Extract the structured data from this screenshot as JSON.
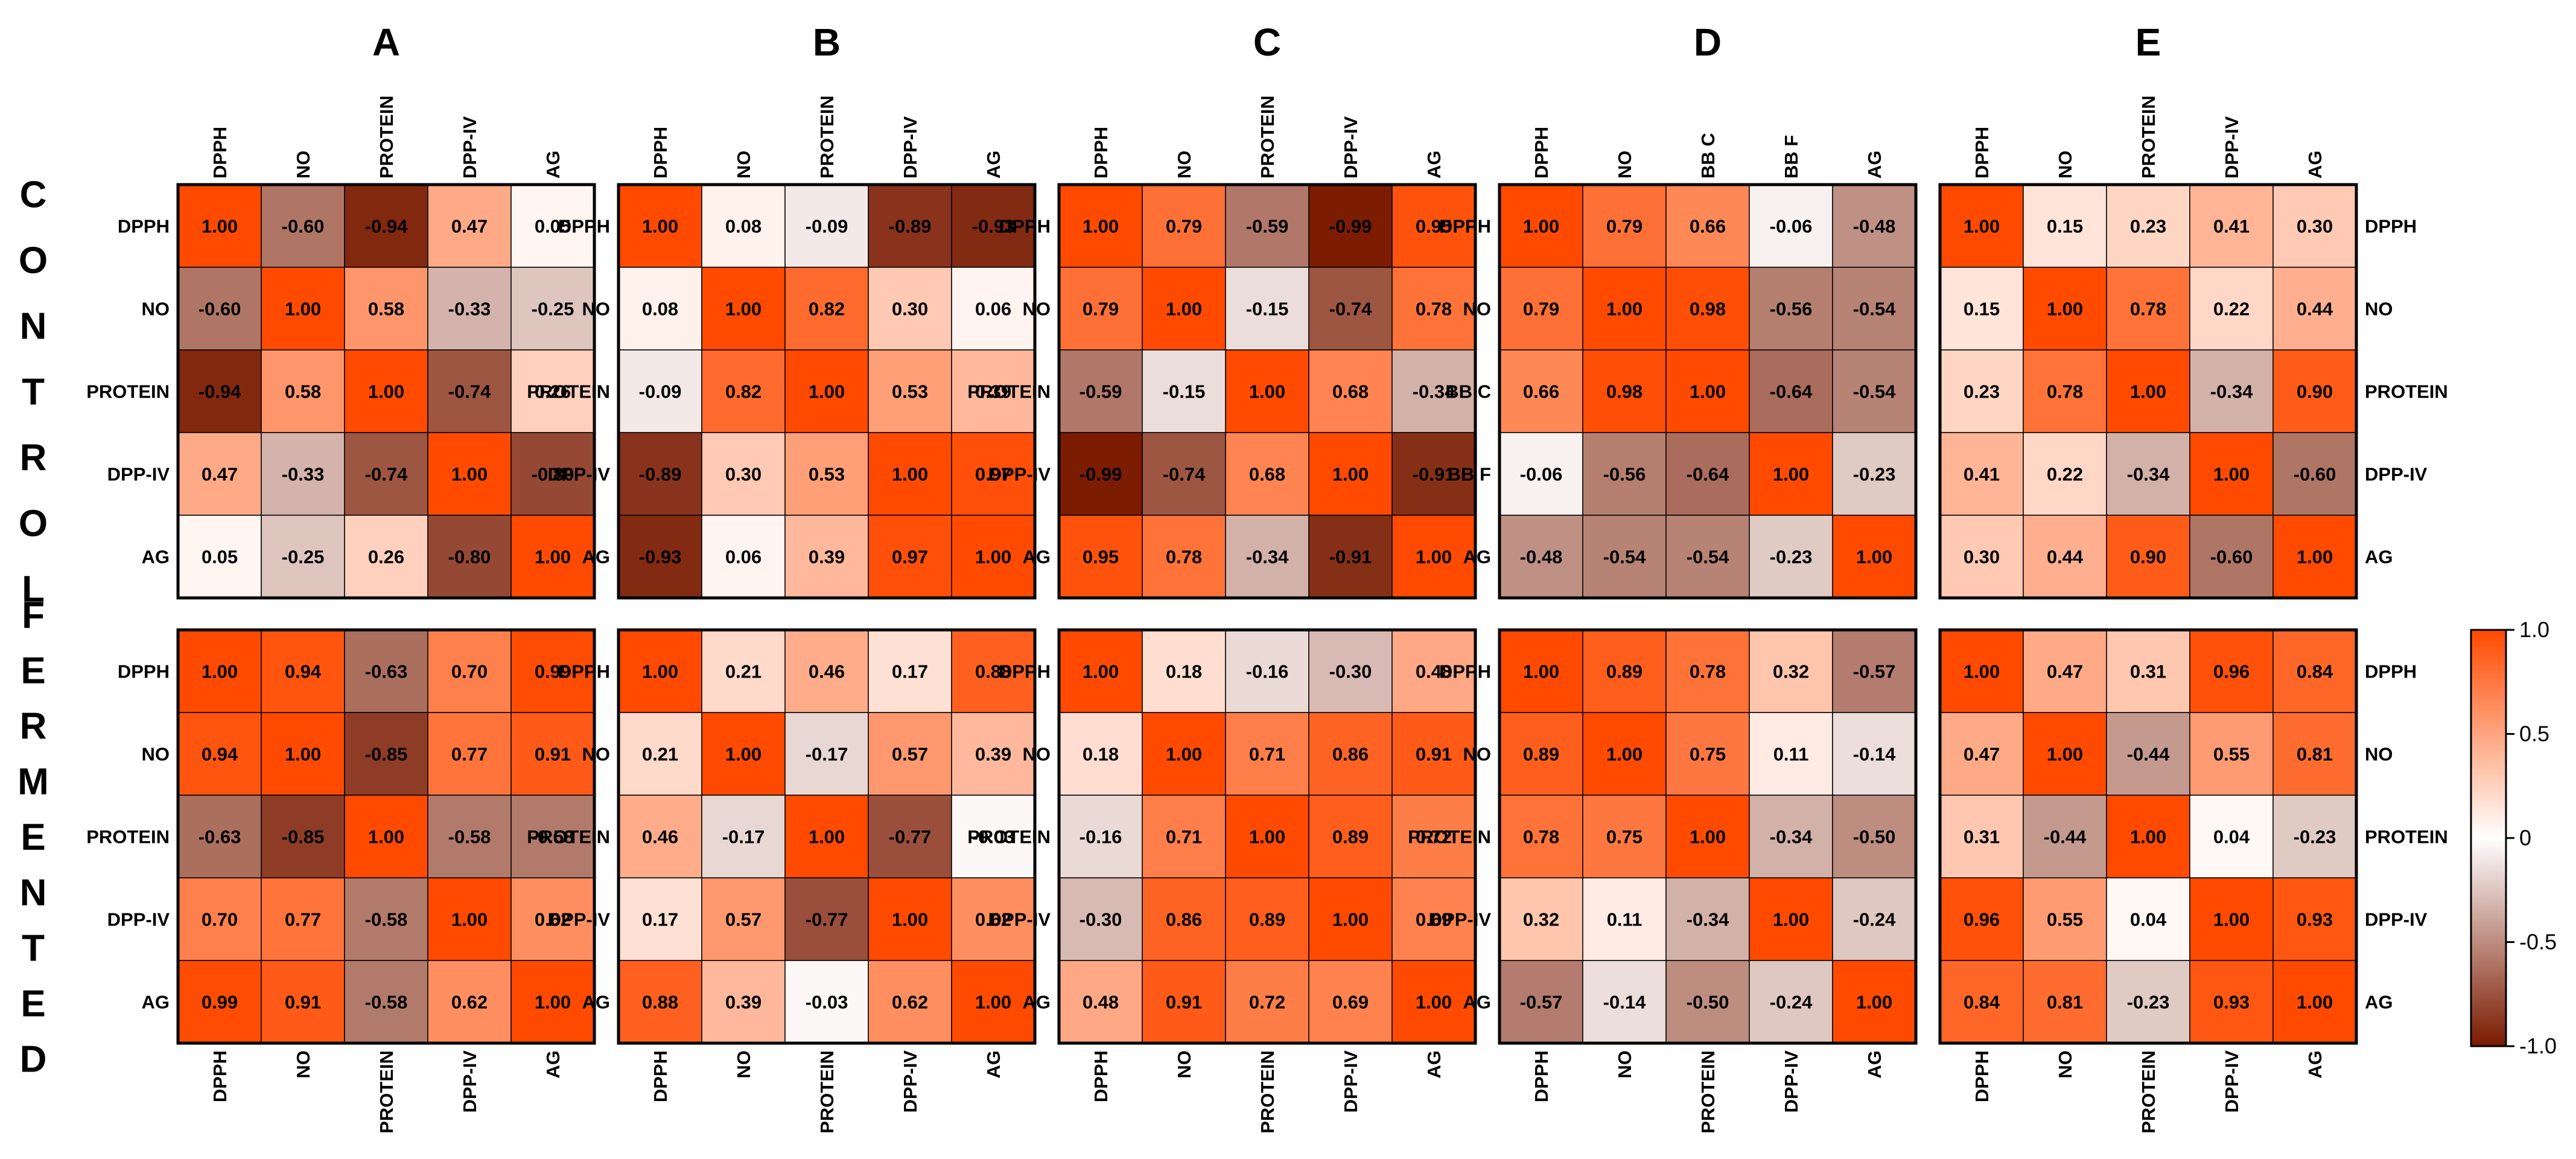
{
  "colors": {
    "positive": "#ff4a00",
    "neutral": "#ffffff",
    "negative": "#7a1a00",
    "cell_border": "#000000",
    "frame": "#000000"
  },
  "groups": [
    "CONTROL",
    "FERMENTED"
  ],
  "chart_data": {
    "type": "heatmap",
    "title": "",
    "value_range": [
      -1.0,
      1.0
    ],
    "colorbar": {
      "ticks": [
        1.0,
        0.5,
        0,
        -0.5,
        -1.0
      ],
      "tick_labels": [
        "1.0",
        "0.5",
        "0",
        "-0.5",
        "-1.0"
      ]
    },
    "panels": [
      {
        "title": "A",
        "control": {
          "labels": [
            "DPPH",
            "NO",
            "PROTEIN",
            "DPP-IV",
            "AG"
          ],
          "values": [
            [
              1.0,
              -0.6,
              -0.94,
              0.47,
              0.05
            ],
            [
              -0.6,
              1.0,
              0.58,
              -0.33,
              -0.25
            ],
            [
              -0.94,
              0.58,
              1.0,
              -0.74,
              0.26
            ],
            [
              0.47,
              -0.33,
              -0.74,
              1.0,
              -0.8
            ],
            [
              0.05,
              -0.25,
              0.26,
              -0.8,
              1.0
            ]
          ]
        },
        "fermented": {
          "labels": [
            "DPPH",
            "NO",
            "PROTEIN",
            "DPP-IV",
            "AG"
          ],
          "values": [
            [
              1.0,
              0.94,
              -0.63,
              0.7,
              0.99
            ],
            [
              0.94,
              1.0,
              -0.85,
              0.77,
              0.91
            ],
            [
              -0.63,
              -0.85,
              1.0,
              -0.58,
              -0.58
            ],
            [
              0.7,
              0.77,
              -0.58,
              1.0,
              0.62
            ],
            [
              0.99,
              0.91,
              -0.58,
              0.62,
              1.0
            ]
          ]
        }
      },
      {
        "title": "B",
        "control": {
          "labels": [
            "DPPH",
            "NO",
            "PROTEIN",
            "DPP-IV",
            "AG"
          ],
          "values": [
            [
              1.0,
              0.08,
              -0.09,
              -0.89,
              -0.93
            ],
            [
              0.08,
              1.0,
              0.82,
              0.3,
              0.06
            ],
            [
              -0.09,
              0.82,
              1.0,
              0.53,
              0.39
            ],
            [
              -0.89,
              0.3,
              0.53,
              1.0,
              0.97
            ],
            [
              -0.93,
              0.06,
              0.39,
              0.97,
              1.0
            ]
          ]
        },
        "fermented": {
          "labels": [
            "DPPH",
            "NO",
            "PROTEIN",
            "DPP-IV",
            "AG"
          ],
          "values": [
            [
              1.0,
              0.21,
              0.46,
              0.17,
              0.88
            ],
            [
              0.21,
              1.0,
              -0.17,
              0.57,
              0.39
            ],
            [
              0.46,
              -0.17,
              1.0,
              -0.77,
              -0.03
            ],
            [
              0.17,
              0.57,
              -0.77,
              1.0,
              0.62
            ],
            [
              0.88,
              0.39,
              -0.03,
              0.62,
              1.0
            ]
          ]
        }
      },
      {
        "title": "C",
        "control": {
          "labels": [
            "DPPH",
            "NO",
            "PROTEIN",
            "DPP-IV",
            "AG"
          ],
          "values": [
            [
              1.0,
              0.79,
              -0.59,
              -0.99,
              0.95
            ],
            [
              0.79,
              1.0,
              -0.15,
              -0.74,
              0.78
            ],
            [
              -0.59,
              -0.15,
              1.0,
              0.68,
              -0.34
            ],
            [
              -0.99,
              -0.74,
              0.68,
              1.0,
              -0.91
            ],
            [
              0.95,
              0.78,
              -0.34,
              -0.91,
              1.0
            ]
          ]
        },
        "fermented": {
          "labels": [
            "DPPH",
            "NO",
            "PROTEIN",
            "DPP-IV",
            "AG"
          ],
          "values": [
            [
              1.0,
              0.18,
              -0.16,
              -0.3,
              0.48
            ],
            [
              0.18,
              1.0,
              0.71,
              0.86,
              0.91
            ],
            [
              -0.16,
              0.71,
              1.0,
              0.89,
              0.72
            ],
            [
              -0.3,
              0.86,
              0.89,
              1.0,
              0.69
            ],
            [
              0.48,
              0.91,
              0.72,
              0.69,
              1.0
            ]
          ]
        }
      },
      {
        "title": "D",
        "control": {
          "labels": [
            "DPPH",
            "NO",
            "BB C",
            "BB F",
            "AG"
          ],
          "values": [
            [
              1.0,
              0.79,
              0.66,
              -0.06,
              -0.48
            ],
            [
              0.79,
              1.0,
              0.98,
              -0.56,
              -0.54
            ],
            [
              0.66,
              0.98,
              1.0,
              -0.64,
              -0.54
            ],
            [
              -0.06,
              -0.56,
              -0.64,
              1.0,
              -0.23
            ],
            [
              -0.48,
              -0.54,
              -0.54,
              -0.23,
              1.0
            ]
          ]
        },
        "fermented": {
          "labels": [
            "DPPH",
            "NO",
            "PROTEIN",
            "DPP-IV",
            "AG"
          ],
          "values": [
            [
              1.0,
              0.89,
              0.78,
              0.32,
              -0.57
            ],
            [
              0.89,
              1.0,
              0.75,
              0.11,
              -0.14
            ],
            [
              0.78,
              0.75,
              1.0,
              -0.34,
              -0.5
            ],
            [
              0.32,
              0.11,
              -0.34,
              1.0,
              -0.24
            ],
            [
              -0.57,
              -0.14,
              -0.5,
              -0.24,
              1.0
            ]
          ]
        }
      },
      {
        "title": "E",
        "control": {
          "labels": [
            "DPPH",
            "NO",
            "PROTEIN",
            "DPP-IV",
            "AG"
          ],
          "values": [
            [
              1.0,
              0.15,
              0.23,
              0.41,
              0.3
            ],
            [
              0.15,
              1.0,
              0.78,
              0.22,
              0.44
            ],
            [
              0.23,
              0.78,
              1.0,
              -0.34,
              0.9
            ],
            [
              0.41,
              0.22,
              -0.34,
              1.0,
              -0.6
            ],
            [
              0.3,
              0.44,
              0.9,
              -0.6,
              1.0
            ]
          ]
        },
        "fermented": {
          "labels": [
            "DPPH",
            "NO",
            "PROTEIN",
            "DPP-IV",
            "AG"
          ],
          "values": [
            [
              1.0,
              0.47,
              0.31,
              0.96,
              0.84
            ],
            [
              0.47,
              1.0,
              -0.44,
              0.55,
              0.81
            ],
            [
              0.31,
              -0.44,
              1.0,
              0.04,
              -0.23
            ],
            [
              0.96,
              0.55,
              0.04,
              1.0,
              0.93
            ],
            [
              0.84,
              0.81,
              -0.23,
              0.93,
              1.0
            ]
          ]
        }
      }
    ]
  }
}
